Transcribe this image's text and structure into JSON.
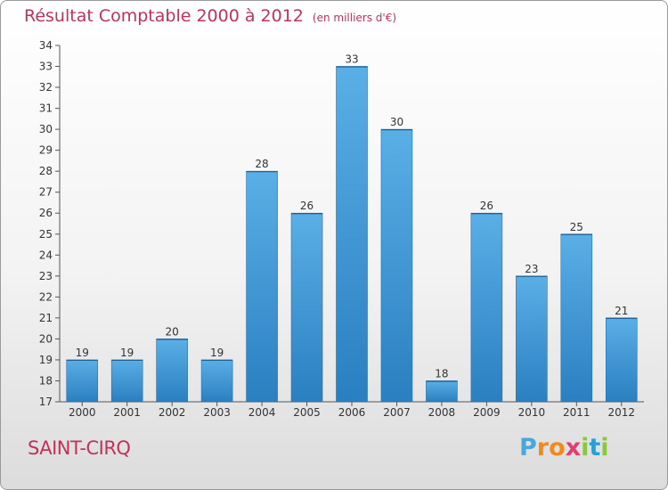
{
  "title": "Résultat Comptable 2000 à 2012",
  "subtitle": "(en milliers d'€)",
  "commune": "SAINT-CIRQ",
  "logo": {
    "letters": [
      "P",
      "r",
      "o",
      "x",
      "i",
      "t",
      "i"
    ],
    "colors": [
      "#4aa7dc",
      "#f08a1c",
      "#f08a1c",
      "#e33b74",
      "#8cc63f",
      "#2a9fd6",
      "#8cc63f"
    ]
  },
  "colors": {
    "bar_light": "#5aafe6",
    "bar_dark": "#2a7fc0",
    "accent": "#c0325a"
  },
  "chart_data": {
    "type": "bar",
    "title": "Résultat Comptable 2000 à 2012",
    "xlabel": "",
    "ylabel": "",
    "categories": [
      "2000",
      "2001",
      "2002",
      "2003",
      "2004",
      "2005",
      "2006",
      "2007",
      "2008",
      "2009",
      "2010",
      "2011",
      "2012"
    ],
    "values": [
      19,
      19,
      20,
      19,
      28,
      26,
      33,
      30,
      18,
      26,
      23,
      25,
      21
    ],
    "ylim": [
      17,
      34
    ],
    "yticks": [
      17,
      18,
      19,
      20,
      21,
      22,
      23,
      24,
      25,
      26,
      27,
      28,
      29,
      30,
      31,
      32,
      33,
      34
    ],
    "grid": false
  }
}
